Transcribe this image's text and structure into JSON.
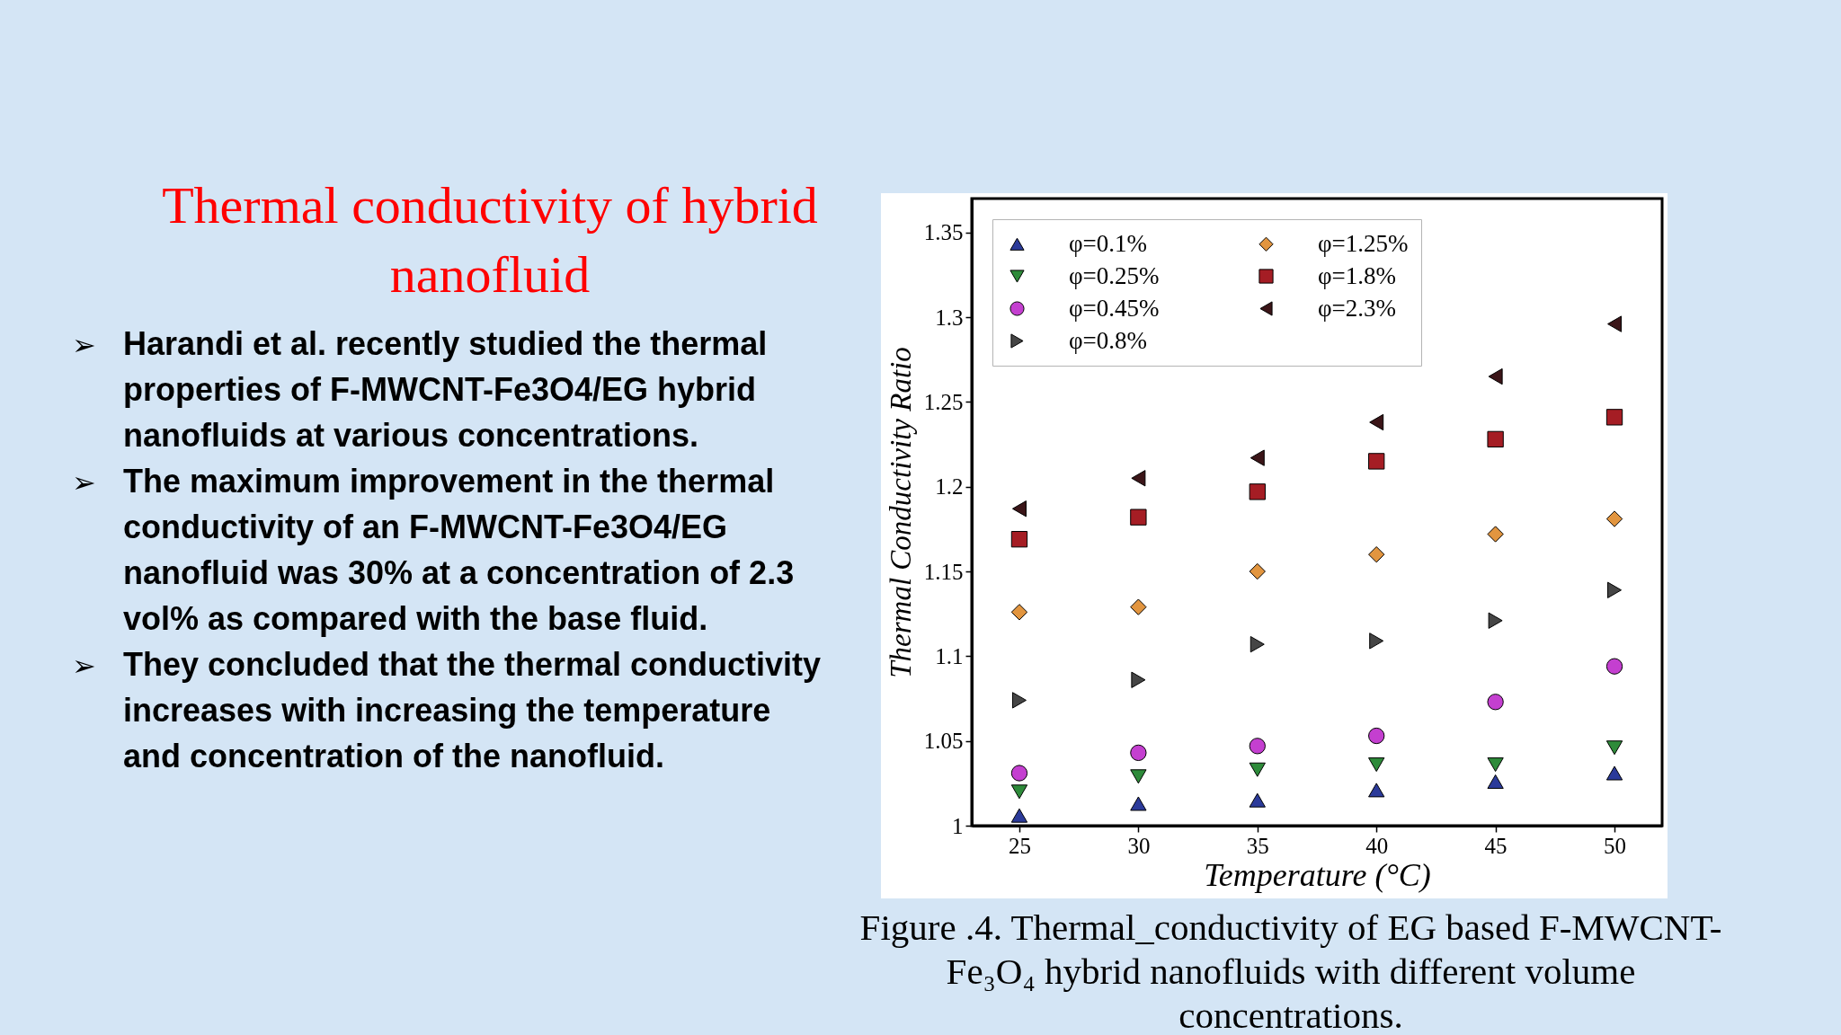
{
  "chart_data": {
    "type": "scatter",
    "title": "Thermal conductivity of hybrid nanofluid",
    "xlabel": "Temperature (°C)",
    "ylabel": "Thermal Conductivity Ratio",
    "x": [
      25,
      30,
      35,
      40,
      45,
      50
    ],
    "series": [
      {
        "name": "φ=0.1%",
        "color": "#2b3a9a",
        "marker": "triangle-up",
        "values": [
          1.006,
          1.013,
          1.015,
          1.021,
          1.026,
          1.031
        ]
      },
      {
        "name": "φ=0.25%",
        "color": "#2e8b3a",
        "marker": "triangle-down",
        "values": [
          1.02,
          1.029,
          1.033,
          1.036,
          1.036,
          1.046
        ]
      },
      {
        "name": "φ=0.45%",
        "color": "#c43fd0",
        "marker": "circle",
        "values": [
          1.031,
          1.043,
          1.047,
          1.053,
          1.073,
          1.094
        ]
      },
      {
        "name": "φ=0.8%",
        "color": "#454545",
        "marker": "triangle-right",
        "values": [
          1.074,
          1.086,
          1.107,
          1.109,
          1.121,
          1.139
        ]
      },
      {
        "name": "φ=1.25%",
        "color": "#e2953f",
        "marker": "diamond",
        "values": [
          1.126,
          1.129,
          1.15,
          1.16,
          1.172,
          1.181
        ]
      },
      {
        "name": "φ=1.8%",
        "color": "#a51d24",
        "marker": "square",
        "values": [
          1.169,
          1.182,
          1.197,
          1.215,
          1.228,
          1.241
        ]
      },
      {
        "name": "φ=2.3%",
        "color": "#3b1518",
        "marker": "triangle-left",
        "values": [
          1.187,
          1.205,
          1.217,
          1.238,
          1.265,
          1.296
        ]
      }
    ],
    "xlim": [
      23,
      52
    ],
    "xticks": [
      25,
      30,
      35,
      40,
      45,
      50
    ],
    "ylim": [
      1,
      1.37
    ],
    "yticks": [
      1,
      1.05,
      1.1,
      1.15,
      1.2,
      1.25,
      1.3,
      1.35
    ],
    "grid": false,
    "legend": "top left",
    "annotations": [
      "➢ Harandi et al. recently studied the thermal properties of F-MWCNT-Fe3O4/EG hybrid nanofluids at various concentrations.",
      "➢ The maximum improvement in the thermal conductivity of an F-MWCNT-Fe3O4/EG nanofluid was 30% at a concentration of 2.3 vol% as compared with the base fluid.",
      "➢ They concluded that the thermal conductivity increases with increasing the temperature and concentration of the nanofluid.",
      "Figure .4. Thermal_conductivity of EG based F-MWCNT-Fe₃O₄ hybrid nanofluids with different volume concentrations."
    ]
  }
}
